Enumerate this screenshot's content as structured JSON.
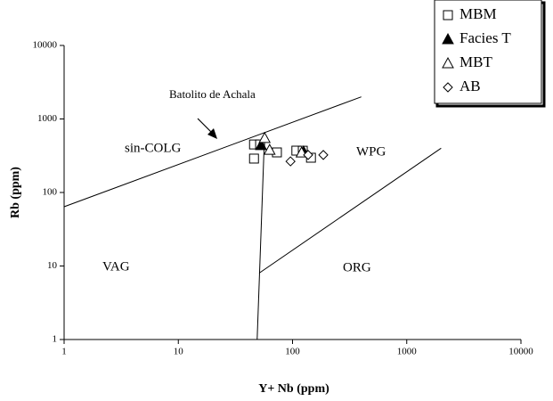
{
  "chart_data": {
    "type": "scatter",
    "x_label": "Y+ Nb (ppm)",
    "y_label": "Rb (ppm)",
    "xlim": [
      1,
      10000
    ],
    "ylim": [
      1,
      10000
    ],
    "xticks": [
      1,
      10,
      100,
      1000,
      10000
    ],
    "yticks": [
      1,
      10,
      100,
      1000,
      10000
    ],
    "xscale": "log",
    "yscale": "log",
    "grid": false,
    "legend": "top-right",
    "series": [
      {
        "name": "MBM",
        "marker": "square",
        "color": "#000000",
        "x": [
          46,
          52,
          46,
          73,
          108,
          123,
          145
        ],
        "y": [
          450,
          450,
          289,
          351,
          371,
          370,
          297
        ]
      },
      {
        "name": "Facies T",
        "marker": "triangle-filled",
        "color": "#000000",
        "x": [
          53,
          125
        ],
        "y": [
          440,
          360
        ]
      },
      {
        "name": "MBT",
        "marker": "triangle",
        "color": "#000000",
        "x": [
          57,
          63,
          120
        ],
        "y": [
          550,
          380,
          350
        ]
      },
      {
        "name": "AB",
        "marker": "diamond",
        "color": "#000000",
        "x": [
          96,
          137,
          186
        ],
        "y": [
          265,
          324,
          324
        ]
      }
    ],
    "boundaries": [
      {
        "x": [
          1,
          400
        ],
        "y": [
          64,
          2000
        ]
      },
      {
        "x": [
          49,
          57
        ],
        "y": [
          1,
          660
        ]
      },
      {
        "x": [
          51,
          2000
        ],
        "y": [
          8,
          400
        ]
      }
    ],
    "regions": [
      "sin-COLG",
      "WPG",
      "VAG",
      "ORG"
    ],
    "annotation": "Batolito de Achala"
  }
}
